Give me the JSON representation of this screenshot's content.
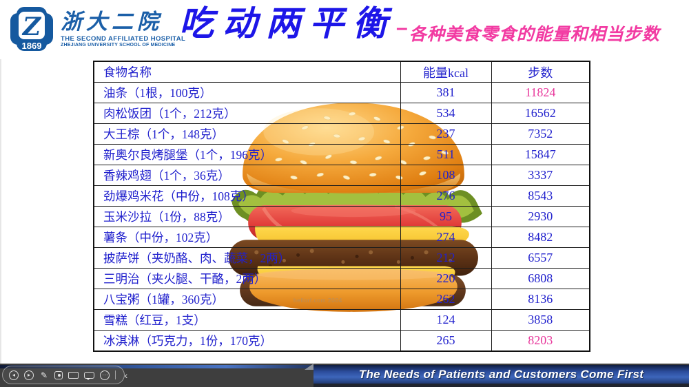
{
  "header": {
    "logo": {
      "letter": "Z",
      "year": "1869"
    },
    "hospital": {
      "name_cn": "浙大二院",
      "name_en_line1": "THE SECOND AFFILIATED HOSPITAL",
      "name_en_line2": "ZHEJIANG UNIVERSITY SCHOOL OF MEDICINE"
    },
    "title": "吃动两平衡",
    "subtitle_dash": "–",
    "subtitle": "各种美食零食的能量和相当步数"
  },
  "table": {
    "columns": [
      "食物名称",
      "能量kcal",
      "步数"
    ],
    "rows": [
      {
        "food": "油条（1根，100克）",
        "kcal": "381",
        "steps": "11824",
        "steps_pink": true
      },
      {
        "food": "肉松饭团（1个，212克）",
        "kcal": "534",
        "steps": "16562",
        "steps_pink": false
      },
      {
        "food": "大王棕（1个，148克）",
        "kcal": "237",
        "steps": "7352",
        "steps_pink": false
      },
      {
        "food": "新奥尔良烤腿堡（1个，196克）",
        "kcal": "511",
        "steps": "15847",
        "steps_pink": false
      },
      {
        "food": "香辣鸡翅（1个，36克）",
        "kcal": "108",
        "steps": "3337",
        "steps_pink": false
      },
      {
        "food": "劲爆鸡米花（中份，108克）",
        "kcal": "276",
        "steps": "8543",
        "steps_pink": false
      },
      {
        "food": "玉米沙拉（1份，88克）",
        "kcal": "95",
        "steps": "2930",
        "steps_pink": false
      },
      {
        "food": "薯条（中份，102克）",
        "kcal": "274",
        "steps": "8482",
        "steps_pink": false
      },
      {
        "food": "披萨饼（夹奶酪、肉、蔬菜，2两）",
        "kcal": "212",
        "steps": "6557",
        "steps_pink": false
      },
      {
        "food": "三明治（夹火腿、干酪，2两）",
        "kcal": "220",
        "steps": "6808",
        "steps_pink": false
      },
      {
        "food": "八宝粥（1罐，360克）",
        "kcal": "262",
        "steps": "8136",
        "steps_pink": false
      },
      {
        "food": "雪糕（红豆，1支）",
        "kcal": "124",
        "steps": "3858",
        "steps_pink": false
      },
      {
        "food": "冰淇淋（巧克力，1份，170克）",
        "kcal": "265",
        "steps": "8203",
        "steps_pink": true
      }
    ]
  },
  "burger_watermark": "hellorf.com 2004",
  "footer": {
    "slogan": "The Needs of Patients and Customers Come First"
  },
  "toolbar": {
    "items": [
      {
        "name": "prev-slide-icon",
        "type": "prev",
        "glyph": "◂",
        "interactable": true
      },
      {
        "name": "next-slide-icon",
        "type": "next",
        "glyph": "▸",
        "interactable": true
      },
      {
        "name": "pen-tool-icon",
        "type": "pen",
        "glyph": "✎",
        "interactable": true
      },
      {
        "name": "laser-pointer-icon",
        "type": "laser",
        "glyph": "",
        "interactable": true
      },
      {
        "name": "camera-icon",
        "type": "camera",
        "glyph": "",
        "interactable": true
      },
      {
        "name": "comment-icon",
        "type": "comment",
        "glyph": "",
        "interactable": true
      },
      {
        "name": "more-options-icon",
        "type": "more",
        "glyph": "⋯",
        "interactable": true
      },
      {
        "name": "toolbar-divider",
        "type": "divider",
        "glyph": "",
        "interactable": false
      },
      {
        "name": "collapse-toolbar-icon",
        "type": "collapse",
        "glyph": "‹",
        "interactable": true
      }
    ]
  },
  "colors": {
    "table_text_blue": "#2121cd",
    "steps_highlight_pink": "#e8379b",
    "title_blue": "#1d16e8",
    "subtitle_pink": "#f23aa2",
    "hospital_blue": "#1b5fa8",
    "banner_blue": "#3d66bb",
    "bottom_bar_gray": "#3e3e3e"
  }
}
